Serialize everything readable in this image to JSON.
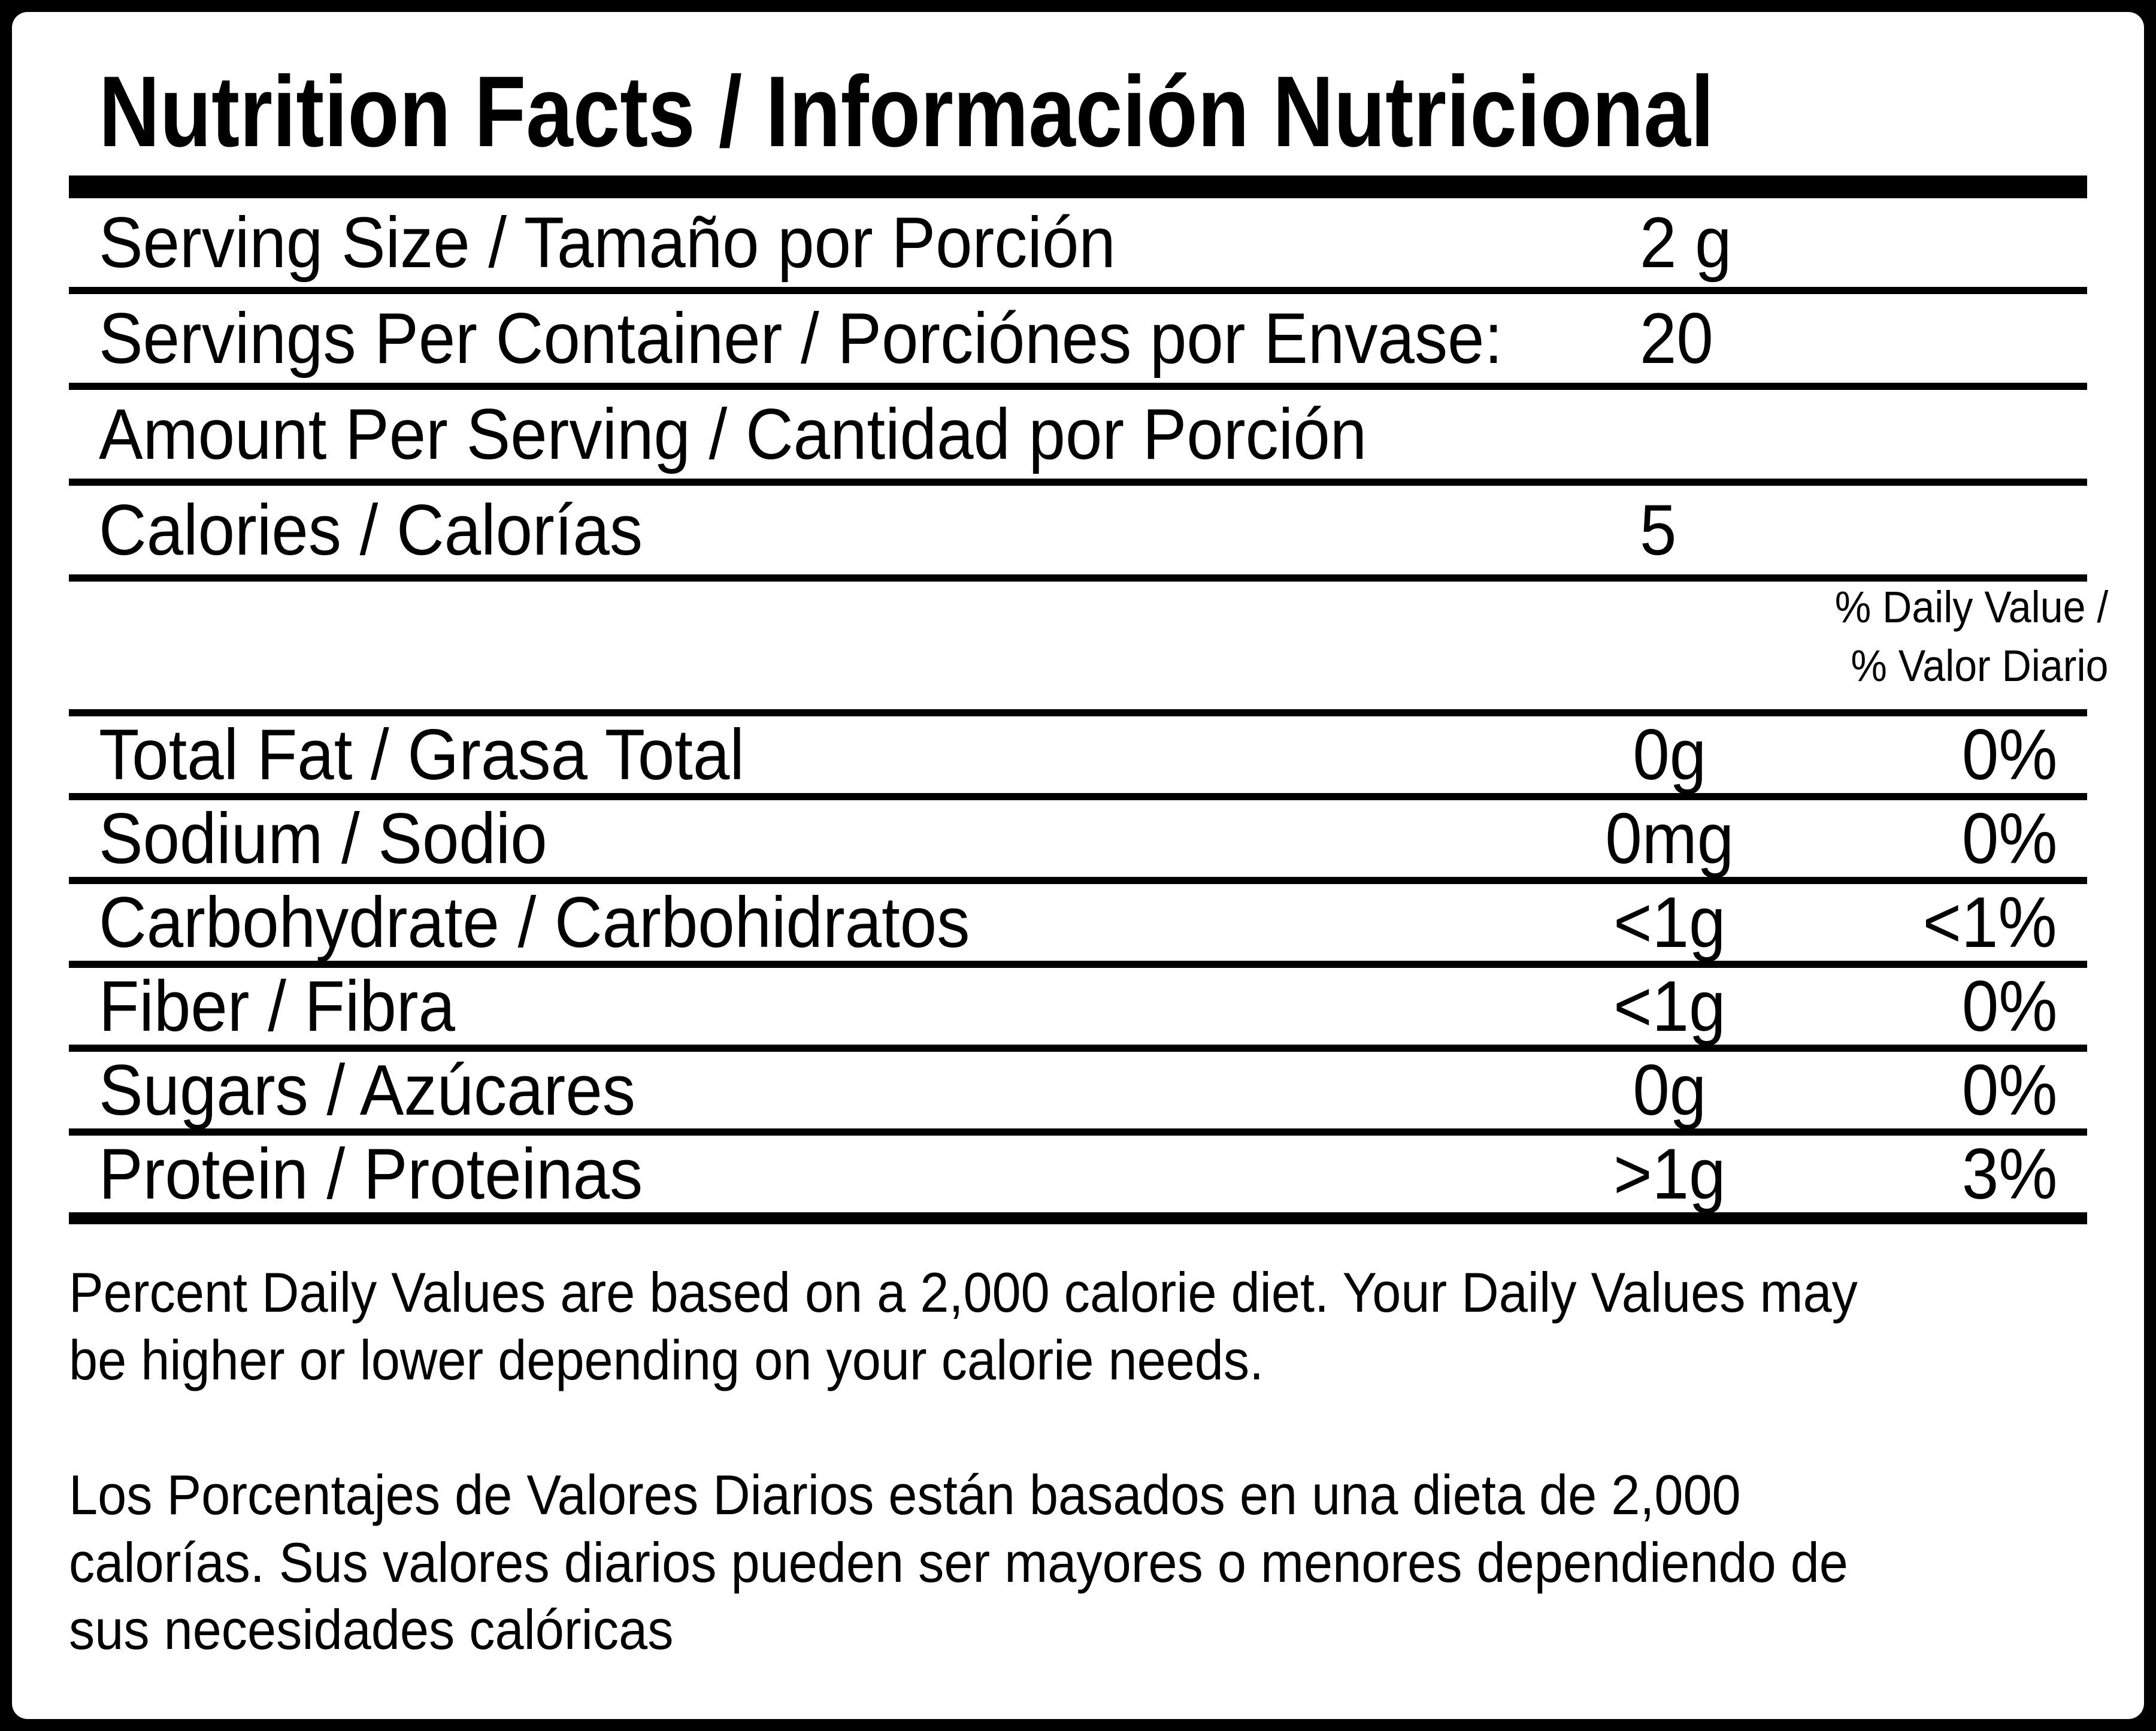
{
  "label": {
    "title": "Nutrition Facts / Información Nutricional",
    "serving_rows": [
      {
        "label": "Serving Size / Tamaño por Porción",
        "value": "2 g"
      },
      {
        "label": "Servings Per Container / Porciónes por Envase:",
        "value": "20"
      },
      {
        "label": "Amount Per Serving / Cantidad por Porción",
        "value": ""
      },
      {
        "label": "Calories / Calorías",
        "value": "5"
      }
    ],
    "daily_value_header": {
      "line1": "% Daily Value /",
      "line2": "% Valor Diario"
    },
    "nutrient_rows": [
      {
        "label": "Total Fat / Grasa Total",
        "amount": "0g",
        "daily_value": "0%"
      },
      {
        "label": "Sodium / Sodio",
        "amount": "0mg",
        "daily_value": "0%"
      },
      {
        "label": "Carbohydrate / Carbohidratos",
        "amount": "<1g",
        "daily_value": "<1%"
      },
      {
        "label": "Fiber / Fibra",
        "amount": "<1g",
        "daily_value": "0%"
      },
      {
        "label": "Sugars / Azúcares",
        "amount": "0g",
        "daily_value": "0%"
      },
      {
        "label": "Protein / Proteinas",
        "amount": ">1g",
        "daily_value": "3%"
      }
    ],
    "footnote_en_lines": [
      "Percent Daily Values are based on a 2,000 calorie diet. Your Daily Values may",
      "be higher or lower depending on your calorie needs."
    ],
    "footnote_es_lines": [
      "Los Porcentajes de Valores Diarios están basados en una dieta de 2,000",
      "calorías. Sus valores diarios pueden ser mayores o menores dependiendo de",
      "sus necesidades calóricas"
    ],
    "colors": {
      "ink": "#000000",
      "paper": "#ffffff"
    }
  }
}
